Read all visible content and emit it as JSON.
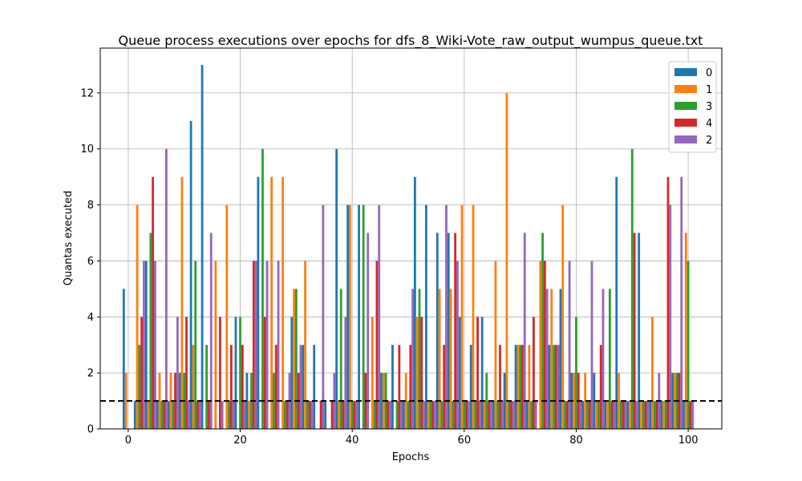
{
  "chart_data": {
    "type": "bar",
    "title": "Queue process executions over epochs for dfs_8_Wiki-Vote_raw_output_wumpus_queue.txt",
    "xlabel": "Epochs",
    "ylabel": "Quantas executed",
    "xlim": [
      -5,
      106
    ],
    "ylim": [
      0,
      13.6
    ],
    "xticks": [
      0,
      20,
      40,
      60,
      80,
      100
    ],
    "yticks": [
      0,
      2,
      4,
      6,
      8,
      10,
      12
    ],
    "grid": true,
    "legend_position": "top-right",
    "reference_line": {
      "y": 1,
      "style": "dashed",
      "color": "#000000"
    },
    "series": [
      {
        "name": "0",
        "color": "#1f77b4",
        "points": [
          [
            0,
            5
          ],
          [
            2,
            1
          ],
          [
            4,
            6
          ],
          [
            6,
            1
          ],
          [
            8,
            1
          ],
          [
            10,
            2
          ],
          [
            12,
            11
          ],
          [
            14,
            13
          ],
          [
            20,
            4
          ],
          [
            22,
            2
          ],
          [
            24,
            9
          ],
          [
            30,
            4
          ],
          [
            32,
            3
          ],
          [
            34,
            3
          ],
          [
            36,
            1
          ],
          [
            38,
            10
          ],
          [
            40,
            8
          ],
          [
            42,
            8
          ],
          [
            46,
            2
          ],
          [
            48,
            3
          ],
          [
            50,
            1
          ],
          [
            52,
            9
          ],
          [
            54,
            8
          ],
          [
            56,
            7
          ],
          [
            58,
            7
          ],
          [
            60,
            4
          ],
          [
            62,
            3
          ],
          [
            64,
            4
          ],
          [
            66,
            1
          ],
          [
            68,
            2
          ],
          [
            70,
            3
          ],
          [
            72,
            1
          ],
          [
            76,
            3
          ],
          [
            78,
            5
          ],
          [
            80,
            2
          ],
          [
            82,
            1
          ],
          [
            84,
            2
          ],
          [
            86,
            1
          ],
          [
            88,
            9
          ],
          [
            90,
            1
          ],
          [
            92,
            7
          ],
          [
            94,
            1
          ],
          [
            96,
            1
          ],
          [
            98,
            2
          ],
          [
            100,
            1
          ]
        ]
      },
      {
        "name": "1",
        "color": "#ff7f0e",
        "points": [
          [
            0,
            2
          ],
          [
            2,
            8
          ],
          [
            4,
            1
          ],
          [
            6,
            2
          ],
          [
            8,
            2
          ],
          [
            10,
            9
          ],
          [
            12,
            3
          ],
          [
            16,
            6
          ],
          [
            18,
            8
          ],
          [
            22,
            1
          ],
          [
            26,
            9
          ],
          [
            28,
            9
          ],
          [
            30,
            5
          ],
          [
            32,
            6
          ],
          [
            38,
            1
          ],
          [
            40,
            8
          ],
          [
            44,
            4
          ],
          [
            46,
            2
          ],
          [
            50,
            2
          ],
          [
            52,
            4
          ],
          [
            54,
            1
          ],
          [
            56,
            5
          ],
          [
            58,
            5
          ],
          [
            60,
            8
          ],
          [
            62,
            8
          ],
          [
            64,
            1
          ],
          [
            66,
            6
          ],
          [
            68,
            12
          ],
          [
            70,
            3
          ],
          [
            72,
            3
          ],
          [
            74,
            6
          ],
          [
            76,
            5
          ],
          [
            78,
            8
          ],
          [
            80,
            2
          ],
          [
            82,
            2
          ],
          [
            84,
            1
          ],
          [
            86,
            1
          ],
          [
            88,
            2
          ],
          [
            90,
            1
          ],
          [
            92,
            1
          ],
          [
            94,
            4
          ],
          [
            96,
            1
          ],
          [
            98,
            2
          ],
          [
            100,
            7
          ]
        ]
      },
      {
        "name": "3",
        "color": "#2ca02c",
        "points": [
          [
            2,
            3
          ],
          [
            4,
            7
          ],
          [
            6,
            1
          ],
          [
            8,
            1
          ],
          [
            10,
            2
          ],
          [
            12,
            6
          ],
          [
            14,
            3
          ],
          [
            18,
            1
          ],
          [
            20,
            4
          ],
          [
            22,
            2
          ],
          [
            24,
            10
          ],
          [
            26,
            2
          ],
          [
            28,
            1
          ],
          [
            30,
            5
          ],
          [
            32,
            1
          ],
          [
            38,
            5
          ],
          [
            40,
            1
          ],
          [
            42,
            8
          ],
          [
            44,
            1
          ],
          [
            46,
            2
          ],
          [
            48,
            1
          ],
          [
            50,
            1
          ],
          [
            52,
            5
          ],
          [
            54,
            1
          ],
          [
            56,
            1
          ],
          [
            58,
            1
          ],
          [
            60,
            1
          ],
          [
            62,
            1
          ],
          [
            64,
            2
          ],
          [
            66,
            1
          ],
          [
            68,
            1
          ],
          [
            70,
            3
          ],
          [
            72,
            1
          ],
          [
            74,
            7
          ],
          [
            76,
            3
          ],
          [
            78,
            1
          ],
          [
            80,
            4
          ],
          [
            82,
            1
          ],
          [
            84,
            1
          ],
          [
            86,
            5
          ],
          [
            88,
            1
          ],
          [
            90,
            10
          ],
          [
            92,
            1
          ],
          [
            94,
            1
          ],
          [
            96,
            1
          ],
          [
            98,
            2
          ],
          [
            100,
            6
          ]
        ]
      },
      {
        "name": "4",
        "color": "#d62728",
        "points": [
          [
            2,
            4
          ],
          [
            4,
            9
          ],
          [
            6,
            1
          ],
          [
            8,
            2
          ],
          [
            10,
            4
          ],
          [
            12,
            1
          ],
          [
            14,
            1
          ],
          [
            16,
            4
          ],
          [
            18,
            3
          ],
          [
            20,
            3
          ],
          [
            22,
            6
          ],
          [
            24,
            4
          ],
          [
            26,
            3
          ],
          [
            28,
            1
          ],
          [
            30,
            2
          ],
          [
            32,
            1
          ],
          [
            34,
            1
          ],
          [
            36,
            1
          ],
          [
            38,
            1
          ],
          [
            40,
            1
          ],
          [
            42,
            2
          ],
          [
            44,
            6
          ],
          [
            46,
            1
          ],
          [
            48,
            3
          ],
          [
            50,
            3
          ],
          [
            52,
            4
          ],
          [
            54,
            1
          ],
          [
            56,
            3
          ],
          [
            58,
            7
          ],
          [
            60,
            1
          ],
          [
            62,
            4
          ],
          [
            64,
            1
          ],
          [
            66,
            3
          ],
          [
            68,
            1
          ],
          [
            70,
            3
          ],
          [
            72,
            4
          ],
          [
            74,
            6
          ],
          [
            76,
            3
          ],
          [
            78,
            1
          ],
          [
            80,
            2
          ],
          [
            82,
            1
          ],
          [
            84,
            3
          ],
          [
            86,
            1
          ],
          [
            88,
            1
          ],
          [
            90,
            7
          ],
          [
            92,
            1
          ],
          [
            94,
            1
          ],
          [
            96,
            9
          ],
          [
            98,
            2
          ],
          [
            100,
            1
          ]
        ]
      },
      {
        "name": "2",
        "color": "#9467bd",
        "points": [
          [
            2,
            6
          ],
          [
            4,
            6
          ],
          [
            6,
            10
          ],
          [
            8,
            4
          ],
          [
            10,
            1
          ],
          [
            12,
            1
          ],
          [
            14,
            7
          ],
          [
            16,
            1
          ],
          [
            18,
            1
          ],
          [
            20,
            1
          ],
          [
            22,
            6
          ],
          [
            24,
            6
          ],
          [
            26,
            6
          ],
          [
            28,
            2
          ],
          [
            30,
            3
          ],
          [
            32,
            1
          ],
          [
            34,
            8
          ],
          [
            36,
            2
          ],
          [
            38,
            4
          ],
          [
            40,
            1
          ],
          [
            42,
            7
          ],
          [
            44,
            8
          ],
          [
            46,
            1
          ],
          [
            48,
            1
          ],
          [
            50,
            5
          ],
          [
            52,
            1
          ],
          [
            54,
            1
          ],
          [
            56,
            8
          ],
          [
            58,
            6
          ],
          [
            60,
            1
          ],
          [
            62,
            1
          ],
          [
            64,
            1
          ],
          [
            66,
            1
          ],
          [
            68,
            1
          ],
          [
            70,
            7
          ],
          [
            72,
            1
          ],
          [
            74,
            5
          ],
          [
            76,
            3
          ],
          [
            78,
            6
          ],
          [
            80,
            1
          ],
          [
            82,
            6
          ],
          [
            84,
            5
          ],
          [
            86,
            1
          ],
          [
            88,
            1
          ],
          [
            90,
            1
          ],
          [
            92,
            1
          ],
          [
            94,
            2
          ],
          [
            96,
            8
          ],
          [
            98,
            9
          ],
          [
            100,
            1
          ]
        ]
      }
    ]
  }
}
